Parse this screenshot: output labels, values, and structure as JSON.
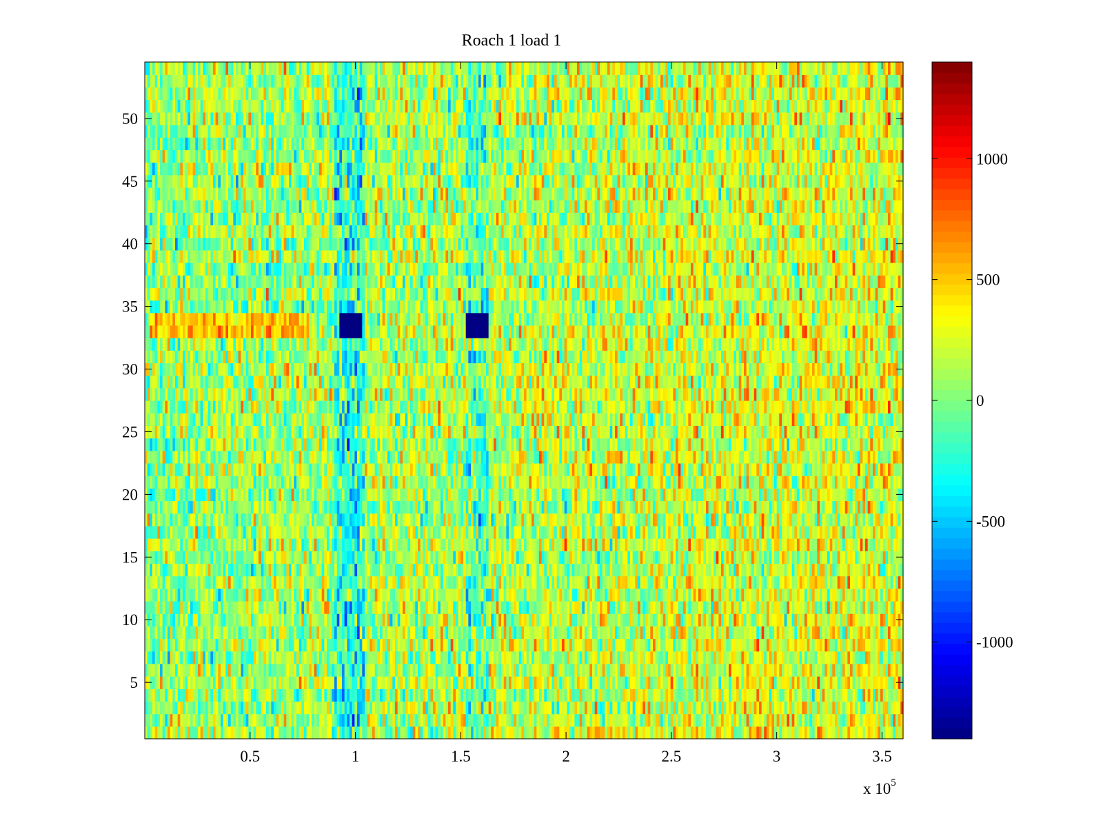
{
  "chart_data": {
    "type": "heatmap",
    "title": "Roach 1 load 1",
    "colormap": "jet",
    "xlim": [
      0,
      360000
    ],
    "ylim": [
      0.5,
      54.5
    ],
    "x_ticks": [
      {
        "value": 50000,
        "label": "0.5"
      },
      {
        "value": 100000,
        "label": "1"
      },
      {
        "value": 150000,
        "label": "1.5"
      },
      {
        "value": 200000,
        "label": "2"
      },
      {
        "value": 250000,
        "label": "2.5"
      },
      {
        "value": 300000,
        "label": "3"
      },
      {
        "value": 350000,
        "label": "3.5"
      }
    ],
    "x_exponent": {
      "base": "x 10",
      "power": "5"
    },
    "y_ticks": [
      {
        "value": 5,
        "label": "5"
      },
      {
        "value": 10,
        "label": "10"
      },
      {
        "value": 15,
        "label": "15"
      },
      {
        "value": 20,
        "label": "20"
      },
      {
        "value": 25,
        "label": "25"
      },
      {
        "value": 30,
        "label": "30"
      },
      {
        "value": 35,
        "label": "35"
      },
      {
        "value": 40,
        "label": "40"
      },
      {
        "value": 45,
        "label": "45"
      },
      {
        "value": 50,
        "label": "50"
      }
    ],
    "colorbar": {
      "clim": [
        -1400,
        1400
      ],
      "ticks": [
        {
          "value": 1000,
          "label": "1000"
        },
        {
          "value": 500,
          "label": "500"
        },
        {
          "value": 0,
          "label": "0"
        },
        {
          "value": -500,
          "label": "-500"
        },
        {
          "value": -1000,
          "label": "-1000"
        }
      ]
    },
    "grid": {
      "rows": 54,
      "columns": 300,
      "row_values": "1 to 54",
      "noise_description": "random fluctuation around ~0, values mostly in [-600, 800]"
    },
    "trend": {
      "start_mean": 50,
      "end_mean": 280,
      "noise_amplitude": 520
    },
    "features": [
      {
        "kind": "blob",
        "x_range": [
          92000,
          103000
        ],
        "y_range": [
          32.5,
          34.5
        ],
        "value": -1250
      },
      {
        "kind": "blob",
        "x_range": [
          153000,
          163000
        ],
        "y_range": [
          32.5,
          34.5
        ],
        "value": -1250
      },
      {
        "kind": "column_dip",
        "x_range": [
          90000,
          104000
        ],
        "value": -420
      },
      {
        "kind": "column_dip",
        "x_range": [
          153000,
          163000
        ],
        "value": -300
      },
      {
        "kind": "row_band",
        "x_range": [
          3000,
          78000
        ],
        "y_range": [
          32.5,
          34.5
        ],
        "value": 480
      }
    ]
  }
}
